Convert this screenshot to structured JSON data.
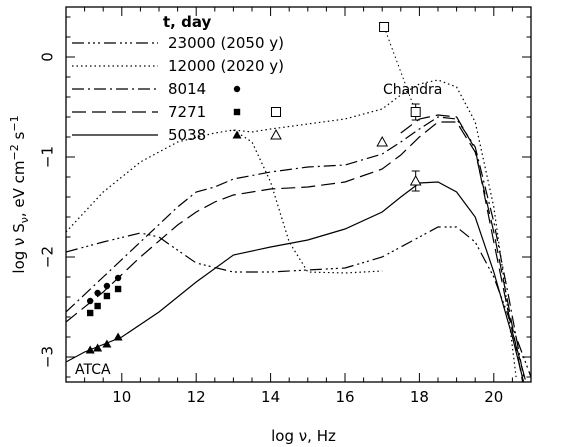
{
  "chart_data": {
    "type": "line",
    "xlabel_parts": [
      "log ",
      "ν",
      ",  Hz"
    ],
    "ylabel_parts": [
      "log ",
      "ν",
      " S",
      "ν",
      ", eV cm",
      "−2",
      " s",
      "−1"
    ],
    "xlim": [
      8.5,
      21
    ],
    "ylim": [
      -3.25,
      0.5
    ],
    "x_ticks": [
      10,
      12,
      14,
      16,
      18,
      20
    ],
    "x_tick_labels": [
      "10",
      "12",
      "14",
      "16",
      "18",
      "20"
    ],
    "y_ticks": [
      0,
      -1,
      -2,
      -3
    ],
    "y_tick_labels": [
      "0",
      "−1",
      "−2",
      "−3"
    ],
    "legend_title": "t, day",
    "legend": [
      {
        "label": "23000 (2050 y)",
        "dash": "dash-dot-dot-dot"
      },
      {
        "label": "12000 (2020 y)",
        "dash": "dotted"
      },
      {
        "label": "8014",
        "dash": "dash-dot",
        "marker": "filled-circle"
      },
      {
        "label": "7271",
        "dash": "dashed",
        "marker": "filled-square",
        "open_marker": "open-square"
      },
      {
        "label": "5038",
        "dash": "solid",
        "marker": "filled-triangle",
        "open_marker": "open-triangle"
      }
    ],
    "annotations": [
      "Chandra",
      "ATCA"
    ],
    "series": [
      {
        "dash": "dash-dot-dot-dot",
        "x": [
          8.5,
          9.5,
          10.5,
          11,
          11.3,
          12,
          13,
          14,
          15,
          16,
          17,
          17.5,
          18,
          18.5,
          19,
          19.5,
          20,
          20.5,
          21
        ],
        "y": [
          -1.95,
          -1.85,
          -1.76,
          -1.8,
          -1.88,
          -2.06,
          -2.15,
          -2.15,
          -2.13,
          -2.11,
          -2.0,
          -1.9,
          -1.8,
          -1.7,
          -1.7,
          -1.85,
          -2.2,
          -2.7,
          -3.2
        ]
      },
      {
        "dash": "dotted",
        "x": [
          8.5,
          9.5,
          10.5,
          11.5,
          12.5,
          13,
          13.5,
          14,
          15,
          16,
          17,
          17.5,
          18,
          18.5,
          19,
          19.5,
          20,
          20.3,
          20.6
        ],
        "y": [
          -1.75,
          -1.35,
          -1.05,
          -0.85,
          -0.76,
          -0.73,
          -0.75,
          -0.72,
          -0.67,
          -0.62,
          -0.52,
          -0.38,
          -0.27,
          -0.23,
          -0.3,
          -0.65,
          -1.5,
          -2.3,
          -3.2
        ]
      },
      {
        "dash": "dotted",
        "x": [
          13,
          13.5,
          14,
          14.5,
          15,
          16,
          17
        ],
        "y": [
          -0.73,
          -0.85,
          -1.25,
          -1.85,
          -2.15,
          -2.16,
          -2.14
        ]
      },
      {
        "dash": "dash-dot",
        "x": [
          8.5,
          9.5,
          10.5,
          11.5,
          12,
          12.5,
          13,
          14,
          15,
          16,
          17,
          17.5,
          18,
          18.5,
          19,
          19.5,
          20,
          20.4,
          20.8
        ],
        "y": [
          -2.55,
          -2.2,
          -1.85,
          -1.5,
          -1.35,
          -1.3,
          -1.22,
          -1.15,
          -1.1,
          -1.08,
          -0.97,
          -0.85,
          -0.72,
          -0.6,
          -0.62,
          -0.9,
          -1.65,
          -2.4,
          -3.2
        ]
      },
      {
        "dash": "dashed",
        "x": [
          8.5,
          9.5,
          10.5,
          11.5,
          12,
          12.5,
          13,
          14,
          15,
          16,
          17,
          17.5,
          18,
          18.5,
          19,
          19.5,
          20,
          20.4,
          20.8
        ],
        "y": [
          -2.65,
          -2.35,
          -2.0,
          -1.68,
          -1.55,
          -1.45,
          -1.38,
          -1.32,
          -1.3,
          -1.25,
          -1.12,
          -0.98,
          -0.8,
          -0.65,
          -0.65,
          -0.95,
          -1.75,
          -2.5,
          -3.3
        ]
      },
      {
        "dash": "dashed",
        "x": [
          17.5,
          18,
          18.5,
          19,
          19.5,
          20,
          20.5,
          20.9
        ],
        "y": [
          -0.76,
          -0.62,
          -0.58,
          -0.6,
          -0.92,
          -1.85,
          -2.75,
          -3.3
        ]
      },
      {
        "dash": "solid",
        "x": [
          8.5,
          9,
          10,
          11,
          12,
          13,
          14,
          15,
          16,
          17,
          17.5,
          18,
          18.5,
          19,
          19.5,
          20,
          20.5,
          20.8
        ],
        "y": [
          -3.05,
          -2.95,
          -2.8,
          -2.55,
          -2.25,
          -1.98,
          -1.9,
          -1.83,
          -1.72,
          -1.55,
          -1.4,
          -1.26,
          -1.25,
          -1.35,
          -1.6,
          -2.15,
          -2.8,
          -3.25
        ]
      }
    ],
    "points": [
      {
        "marker": "filled-circle",
        "x": [
          9.15,
          9.35,
          9.6,
          9.9
        ],
        "y": [
          -2.44,
          -2.36,
          -2.29,
          -2.21
        ]
      },
      {
        "marker": "filled-square",
        "x": [
          9.15,
          9.35,
          9.6,
          9.9
        ],
        "y": [
          -2.56,
          -2.49,
          -2.39,
          -2.32
        ]
      },
      {
        "marker": "filled-triangle",
        "x": [
          9.15,
          9.35,
          9.6,
          9.9
        ],
        "y": [
          -2.93,
          -2.91,
          -2.87,
          -2.8
        ]
      },
      {
        "marker": "open-square",
        "x": [
          17.05,
          17.9
        ],
        "y": [
          0.3,
          -0.55
        ],
        "yerr": [
          0,
          0.08
        ]
      },
      {
        "marker": "open-triangle",
        "x": [
          17.0,
          17.9
        ],
        "y": [
          -0.85,
          -1.24
        ],
        "yerr": [
          0,
          0.1
        ]
      }
    ],
    "connectors": [
      {
        "dash": "dotted",
        "x": [
          17.05,
          17.9
        ],
        "y": [
          0.3,
          -0.55
        ]
      }
    ]
  }
}
